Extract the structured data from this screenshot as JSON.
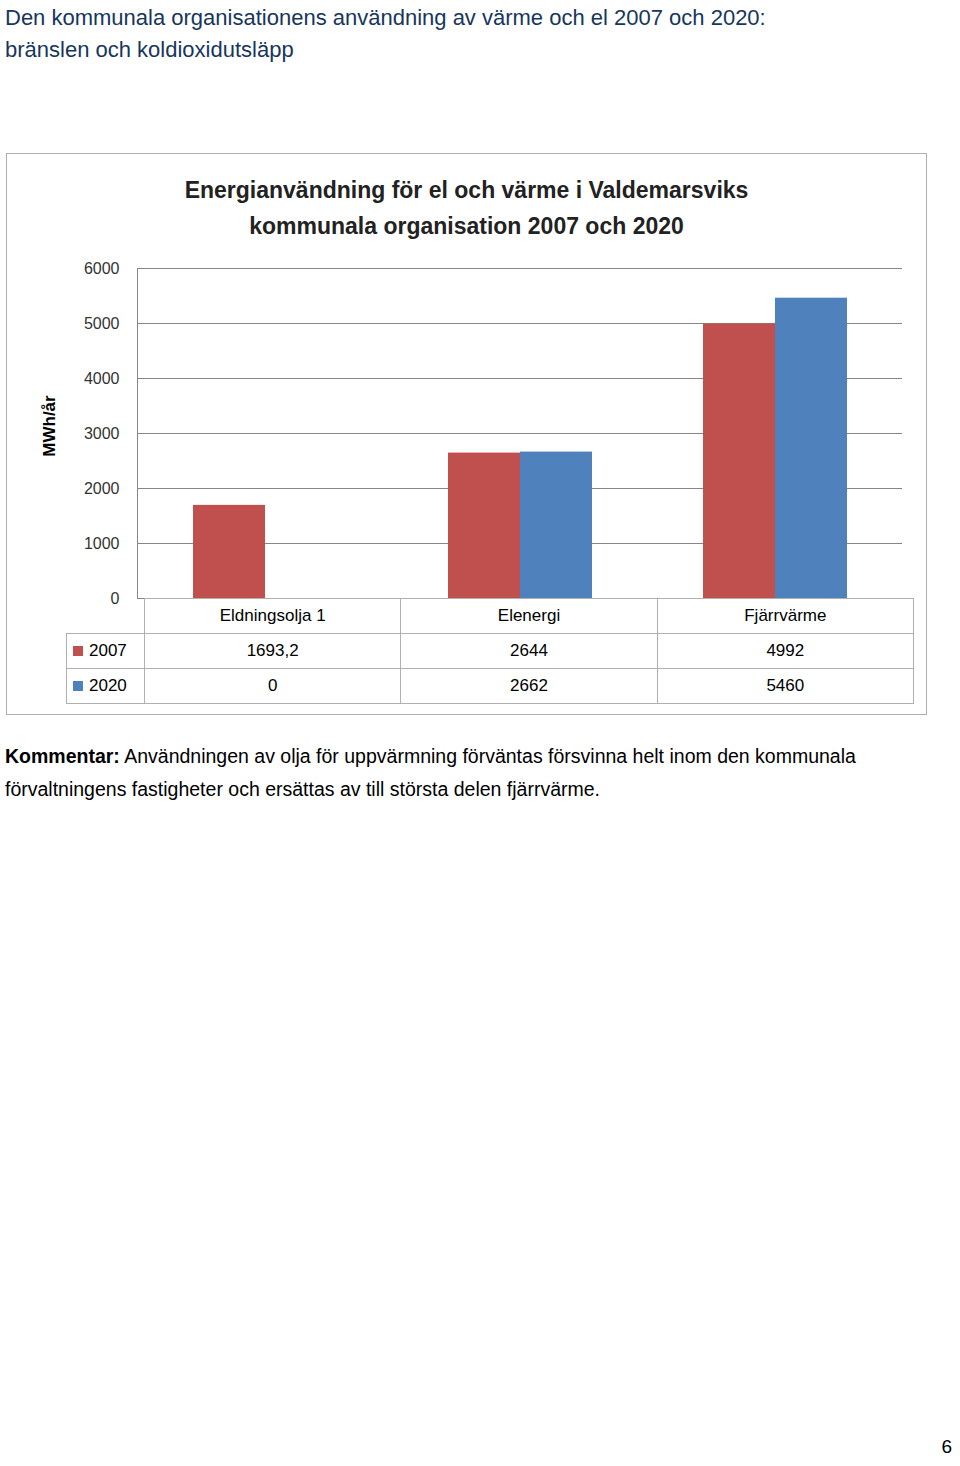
{
  "page": {
    "heading": [
      "Den kommunala organisationens användning av värme och el 2007 och 2020:",
      "bränslen och koldioxidutsläpp"
    ],
    "comment_label": "Kommentar:",
    "comment": [
      "Användningen av olja för uppvärmning förväntas försvinna helt inom den kommunala",
      "förvaltningens fastigheter och ersättas av till största delen fjärrvärme."
    ],
    "page_number": 6
  },
  "chart_data": {
    "type": "bar",
    "title": [
      "Energianvändning för el och värme i Valdemarsviks",
      "kommunala organisation 2007 och 2020"
    ],
    "ylabel": "MWh/år",
    "categories": [
      "Eldningsolja 1",
      "Elenergi",
      "Fjärrvärme"
    ],
    "series": [
      {
        "name": "2007",
        "color": "#c0504d",
        "values": [
          1693.2,
          2644,
          4992
        ],
        "value_labels": [
          "1693,2",
          "2644",
          "4992"
        ]
      },
      {
        "name": "2020",
        "color": "#4f81bd",
        "values": [
          0,
          2662,
          5460
        ],
        "value_labels": [
          "0",
          "2662",
          "5460"
        ]
      }
    ],
    "ylim": [
      0,
      6000
    ],
    "yticks": [
      0,
      1000,
      2000,
      3000,
      4000,
      5000,
      6000
    ],
    "grid": true,
    "data_labels": true
  }
}
